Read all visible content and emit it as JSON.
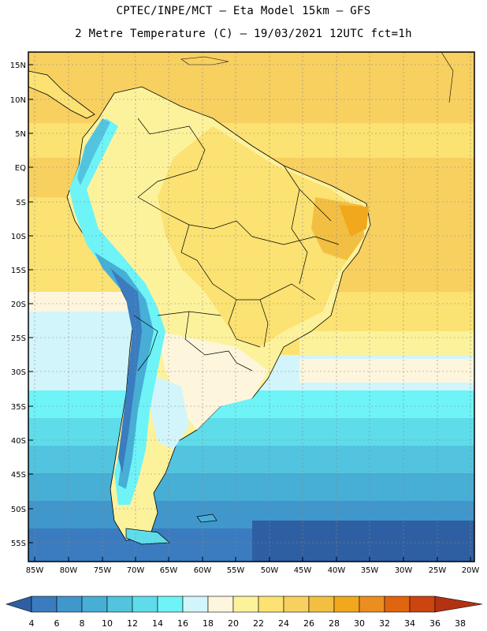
{
  "header": {
    "line1": "CPTEC/INPE/MCT –  Eta Model 15km – GFS",
    "line2": "2 Metre Temperature (C) – 19/03/2021 12UTC fct=1h"
  },
  "axes": {
    "lat_labels": [
      "15N",
      "10N",
      "5N",
      "EQ",
      "5S",
      "10S",
      "15S",
      "20S",
      "25S",
      "30S",
      "35S",
      "40S",
      "45S",
      "50S",
      "55S"
    ],
    "lon_labels": [
      "85W",
      "80W",
      "75W",
      "70W",
      "65W",
      "60W",
      "55W",
      "50W",
      "45W",
      "40W",
      "35W",
      "30W",
      "25W",
      "20W"
    ]
  },
  "colorbar": {
    "levels": [
      "4",
      "6",
      "8",
      "10",
      "12",
      "14",
      "16",
      "18",
      "20",
      "22",
      "24",
      "26",
      "28",
      "30",
      "32",
      "34",
      "36",
      "38"
    ],
    "colors": [
      "#2f5fa3",
      "#3a7cbf",
      "#3f97cc",
      "#47aed6",
      "#52c4df",
      "#5fdcea",
      "#6ef3f7",
      "#d2f5fb",
      "#fdf6dc",
      "#fdf29c",
      "#fbe272",
      "#f8d060",
      "#f3bf42",
      "#f1a81d",
      "#ec8d1f",
      "#e1650e",
      "#cc4410",
      "#b33212"
    ]
  }
}
